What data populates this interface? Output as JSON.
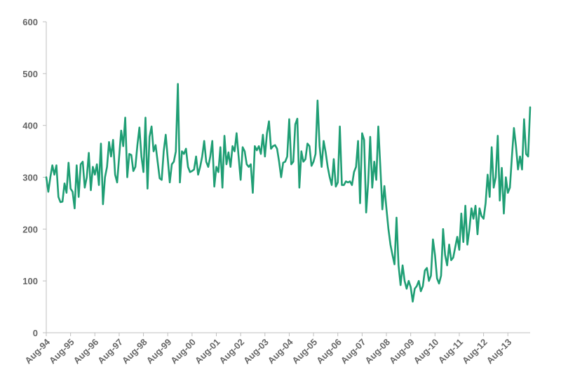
{
  "chart_data": {
    "type": "line",
    "title": "",
    "xlabel": "",
    "ylabel": "",
    "ylim": [
      0,
      600
    ],
    "yticks": [
      0,
      100,
      200,
      300,
      400,
      500,
      600
    ],
    "xticks": [
      "Aug-94",
      "Aug-95",
      "Aug-96",
      "Aug-97",
      "Aug-98",
      "Aug-99",
      "Aug-00",
      "Aug-01",
      "Aug-02",
      "Aug-03",
      "Aug-04",
      "Aug-05",
      "Aug-06",
      "Aug-07",
      "Aug-08",
      "Aug-09",
      "Aug-10",
      "Aug-11",
      "Aug-12",
      "Aug-13"
    ],
    "grid": false,
    "line_color": "#1f9e74",
    "axis_color": "#bfbfbf",
    "start": "Aug-94",
    "series": [
      {
        "name": "",
        "values": [
          300,
          272,
          300,
          323,
          305,
          323,
          262,
          252,
          253,
          288,
          270,
          328,
          278,
          272,
          240,
          323,
          262,
          325,
          330,
          280,
          300,
          347,
          275,
          320,
          305,
          325,
          285,
          365,
          248,
          300,
          320,
          368,
          340,
          372,
          305,
          290,
          340,
          390,
          360,
          415,
          300,
          345,
          343,
          312,
          320,
          362,
          396,
          340,
          310,
          415,
          278,
          378,
          398,
          350,
          362,
          330,
          298,
          295,
          350,
          382,
          336,
          290,
          325,
          330,
          350,
          480,
          290,
          350,
          345,
          355,
          320,
          310,
          312,
          315,
          340,
          305,
          320,
          340,
          370,
          330,
          320,
          340,
          370,
          282,
          320,
          310,
          358,
          280,
          380,
          325,
          348,
          320,
          360,
          350,
          385,
          340,
          295,
          358,
          350,
          325,
          320,
          325,
          270,
          360,
          352,
          360,
          345,
          382,
          340,
          385,
          408,
          355,
          360,
          362,
          355,
          330,
          300,
          328,
          330,
          340,
          412,
          325,
          330,
          402,
          413,
          280,
          350,
          330,
          335,
          365,
          360,
          322,
          330,
          345,
          448,
          360,
          320,
          370,
          348,
          320,
          300,
          285,
          335,
          282,
          290,
          398,
          285,
          285,
          292,
          290,
          292,
          285,
          310,
          320,
          370,
          250,
          385,
          372,
          232,
          290,
          378,
          280,
          330,
          295,
          398,
          320,
          238,
          283,
          240,
          200,
          170,
          150,
          132,
          222,
          130,
          92,
          130,
          100,
          85,
          100,
          88,
          60,
          85,
          90,
          100,
          80,
          90,
          120,
          125,
          100,
          110,
          180,
          150,
          105,
          95,
          110,
          200,
          150,
          130,
          170,
          140,
          145,
          165,
          185,
          160,
          230,
          175,
          245,
          170,
          200,
          240,
          220,
          245,
          190,
          240,
          225,
          220,
          250,
          305,
          262,
          358,
          280,
          300,
          380,
          255,
          318,
          230,
          300,
          270,
          280,
          340,
          395,
          360,
          315,
          340,
          315,
          412,
          345,
          340,
          435
        ]
      }
    ]
  }
}
